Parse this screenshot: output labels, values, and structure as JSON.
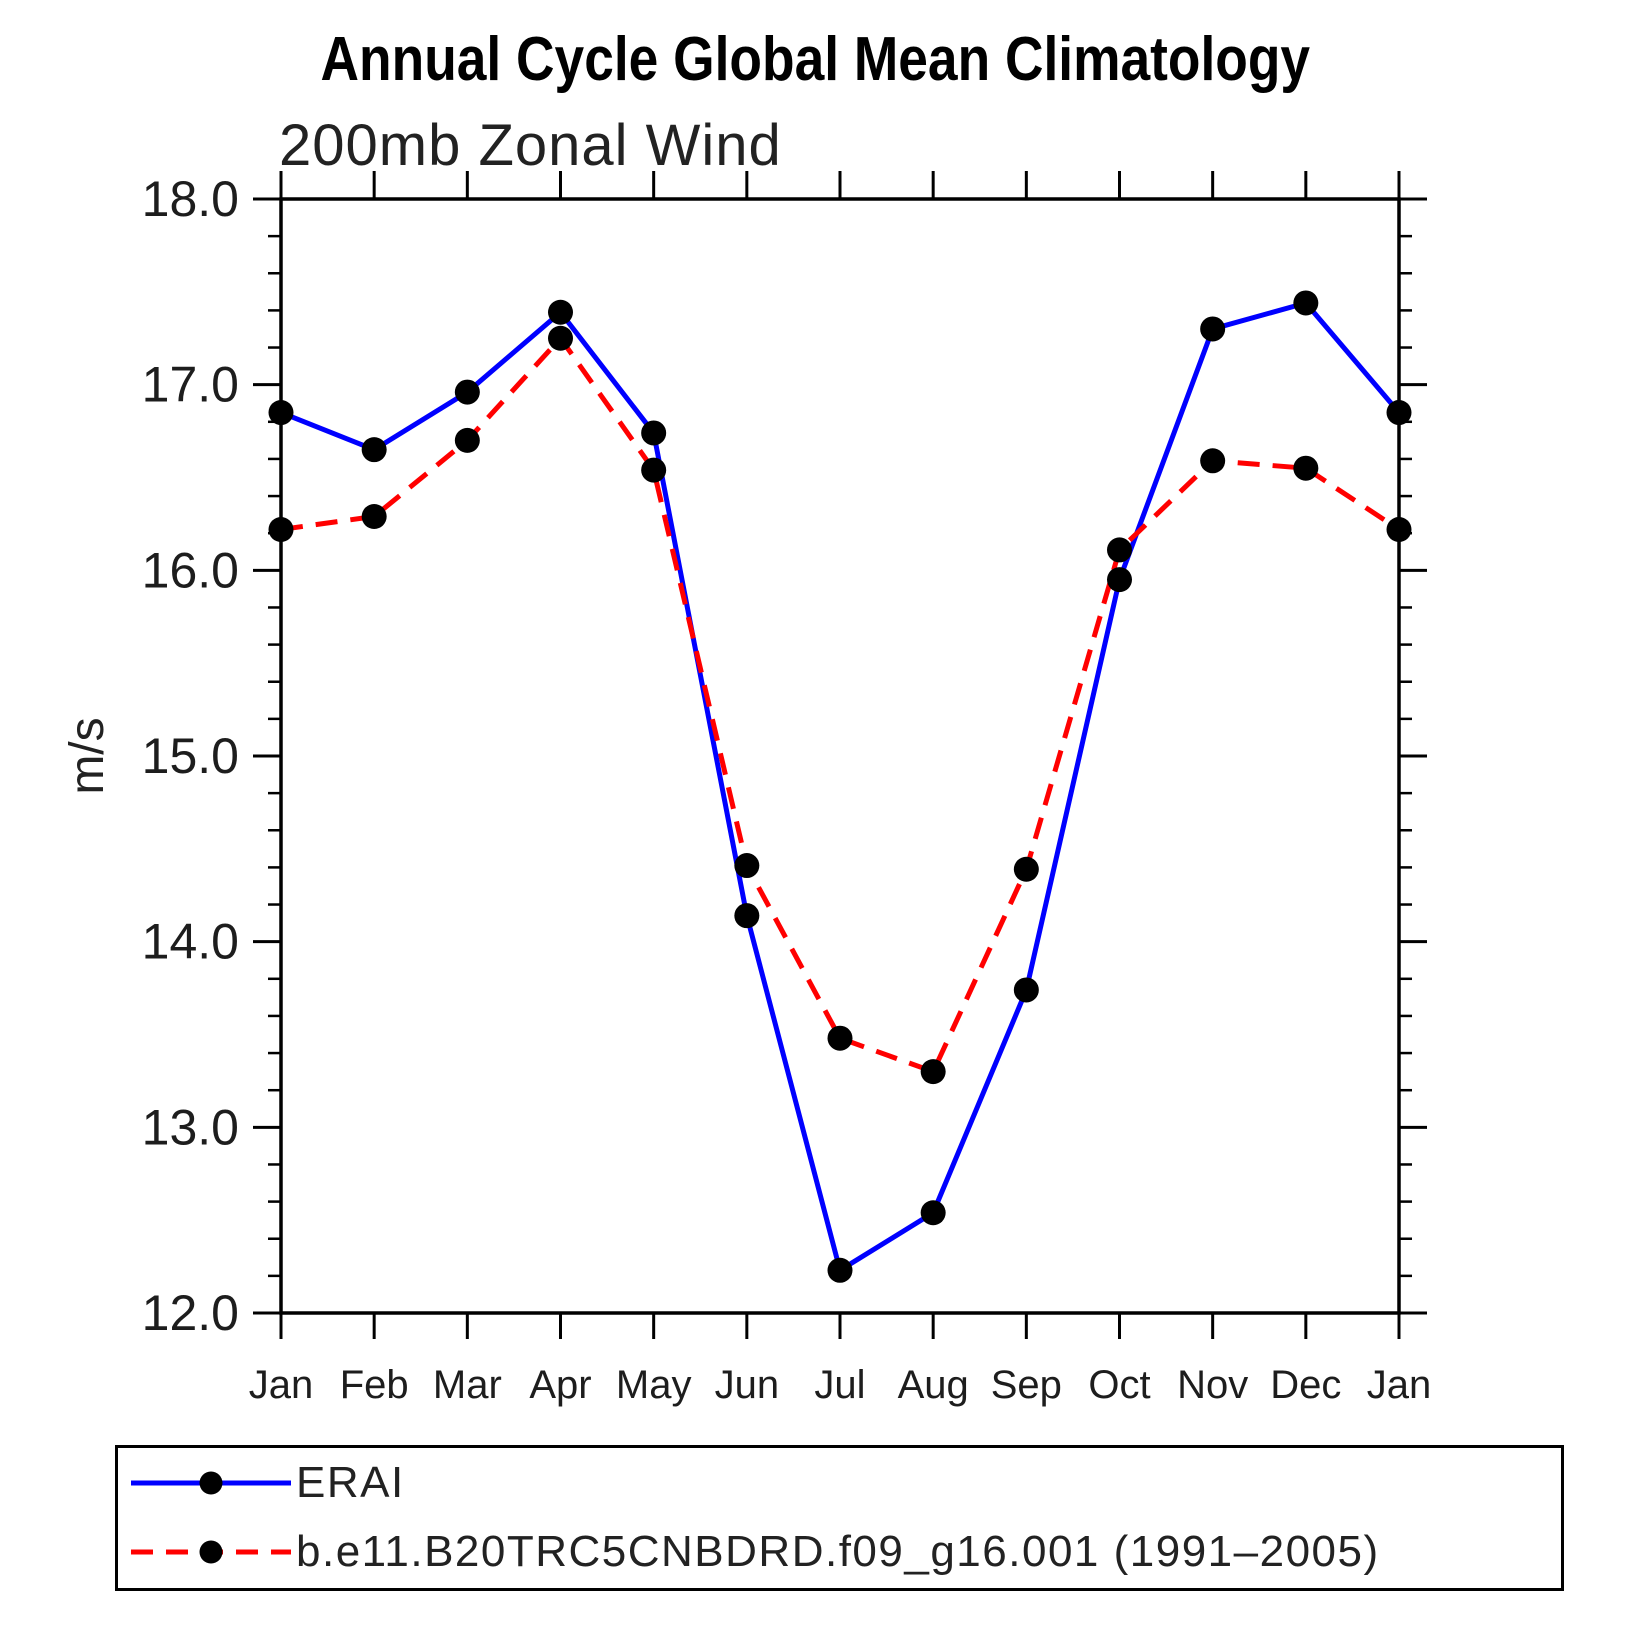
{
  "title": "Annual Cycle Global Mean Climatology",
  "subtitle": "200mb Zonal Wind",
  "chart_data": {
    "type": "line",
    "title": "Annual Cycle Global Mean Climatology",
    "subtitle": "200mb Zonal Wind",
    "xlabel": "",
    "ylabel": "m/s",
    "categories": [
      "Jan",
      "Feb",
      "Mar",
      "Apr",
      "May",
      "Jun",
      "Jul",
      "Aug",
      "Sep",
      "Oct",
      "Nov",
      "Dec",
      "Jan"
    ],
    "ylim": [
      12.0,
      18.0
    ],
    "y_major_tick_step": 1.0,
    "y_minor_tick_step": 0.2,
    "y_tick_labels": [
      "12.0",
      "13.0",
      "14.0",
      "15.0",
      "16.0",
      "17.0",
      "18.0"
    ],
    "grid": false,
    "legend_position": "bottom-box",
    "series": [
      {
        "name": "ERAI",
        "line_color": "#0000ff",
        "line_style": "solid",
        "marker": "filled-circle",
        "marker_color": "#000000",
        "values": [
          16.85,
          16.65,
          16.96,
          17.39,
          16.74,
          14.14,
          12.23,
          12.54,
          13.74,
          15.95,
          17.3,
          17.44,
          16.85
        ]
      },
      {
        "name": "b.e11.B20TRC5CNBDRD.f09_g16.001 (1991–2005)",
        "line_color": "#ff0000",
        "line_style": "dashed",
        "marker": "filled-circle",
        "marker_color": "#000000",
        "values": [
          16.22,
          16.29,
          16.7,
          17.25,
          16.54,
          14.41,
          13.48,
          13.3,
          14.39,
          16.11,
          16.59,
          16.55,
          16.22
        ]
      }
    ]
  },
  "colors": {
    "axis": "#000000",
    "background": "#ffffff",
    "erai_blue": "#0000ff",
    "model_red": "#ff0000",
    "marker_black": "#000000"
  }
}
